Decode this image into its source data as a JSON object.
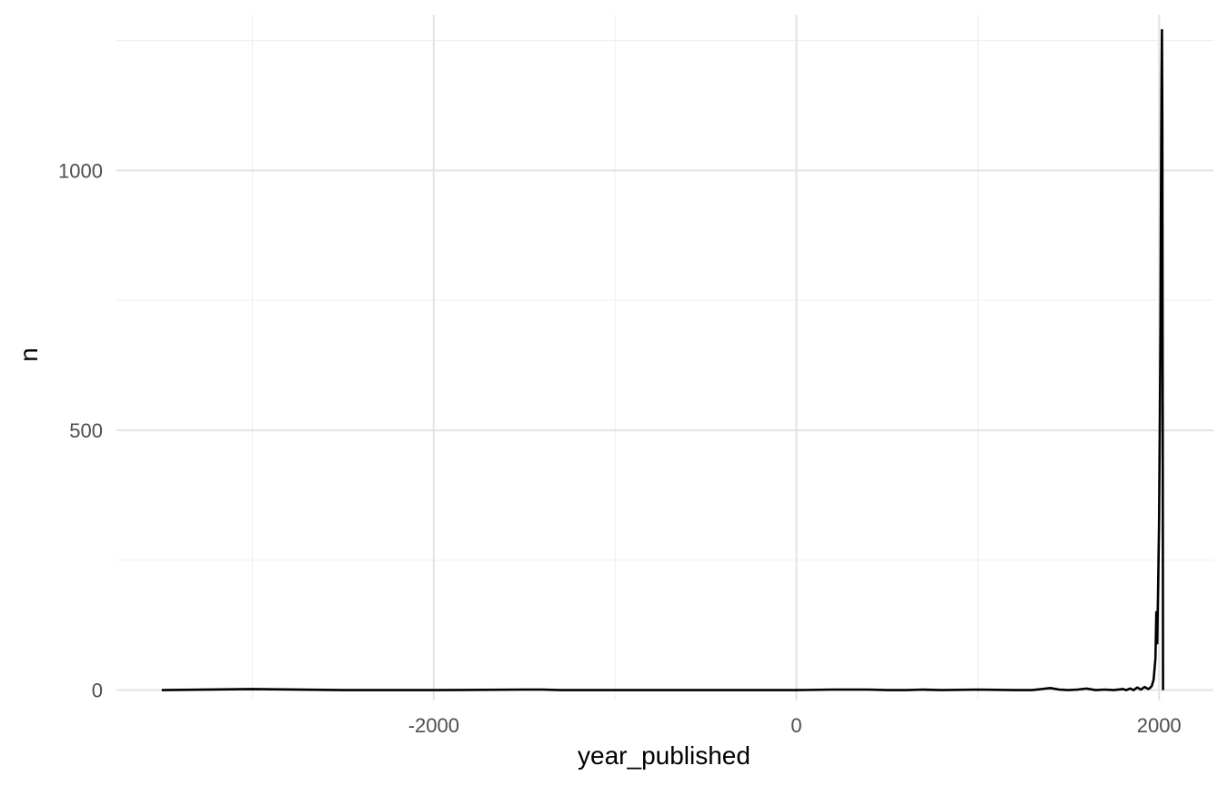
{
  "chart_data": {
    "type": "line",
    "title": "",
    "xlabel": "year_published",
    "ylabel": "n",
    "xlim": [
      -3750,
      2300
    ],
    "ylim": [
      -20,
      1300
    ],
    "x_ticks": [
      {
        "value": -2000,
        "label": "-2000"
      },
      {
        "value": 0,
        "label": "0"
      },
      {
        "value": 2000,
        "label": "2000"
      }
    ],
    "x_minor": [
      -3000,
      -1000,
      1000
    ],
    "y_ticks": [
      {
        "value": 0,
        "label": "0"
      },
      {
        "value": 500,
        "label": "500"
      },
      {
        "value": 1000,
        "label": "1000"
      }
    ],
    "y_minor": [
      250,
      750,
      1250
    ],
    "grid": true,
    "legend": "none",
    "line_color": "#000000",
    "series": [
      {
        "x": [
          -3500,
          -3000,
          -2500,
          -2000,
          -1500,
          -1400,
          -1300,
          -1000,
          -500,
          0,
          200,
          400,
          500,
          600,
          700,
          800,
          1000,
          1200,
          1300,
          1400,
          1450,
          1500,
          1550,
          1600,
          1650,
          1700,
          1750,
          1800,
          1820,
          1840,
          1860,
          1880,
          1900,
          1920,
          1940,
          1950,
          1960,
          1970,
          1975,
          1980,
          1985,
          1990,
          1995,
          2000,
          2005,
          2008,
          2010,
          2012,
          2014,
          2016,
          2018,
          2020,
          2022
        ],
        "y": [
          0,
          2,
          0,
          0,
          1,
          1,
          0,
          0,
          0,
          0,
          1,
          1,
          0,
          0,
          1,
          0,
          1,
          0,
          0,
          4,
          1,
          0,
          1,
          3,
          0,
          1,
          0,
          2,
          0,
          3,
          0,
          5,
          1,
          6,
          2,
          4,
          8,
          20,
          40,
          60,
          150,
          90,
          200,
          320,
          540,
          700,
          900,
          1050,
          1180,
          1270,
          1100,
          600,
          0
        ]
      }
    ]
  }
}
